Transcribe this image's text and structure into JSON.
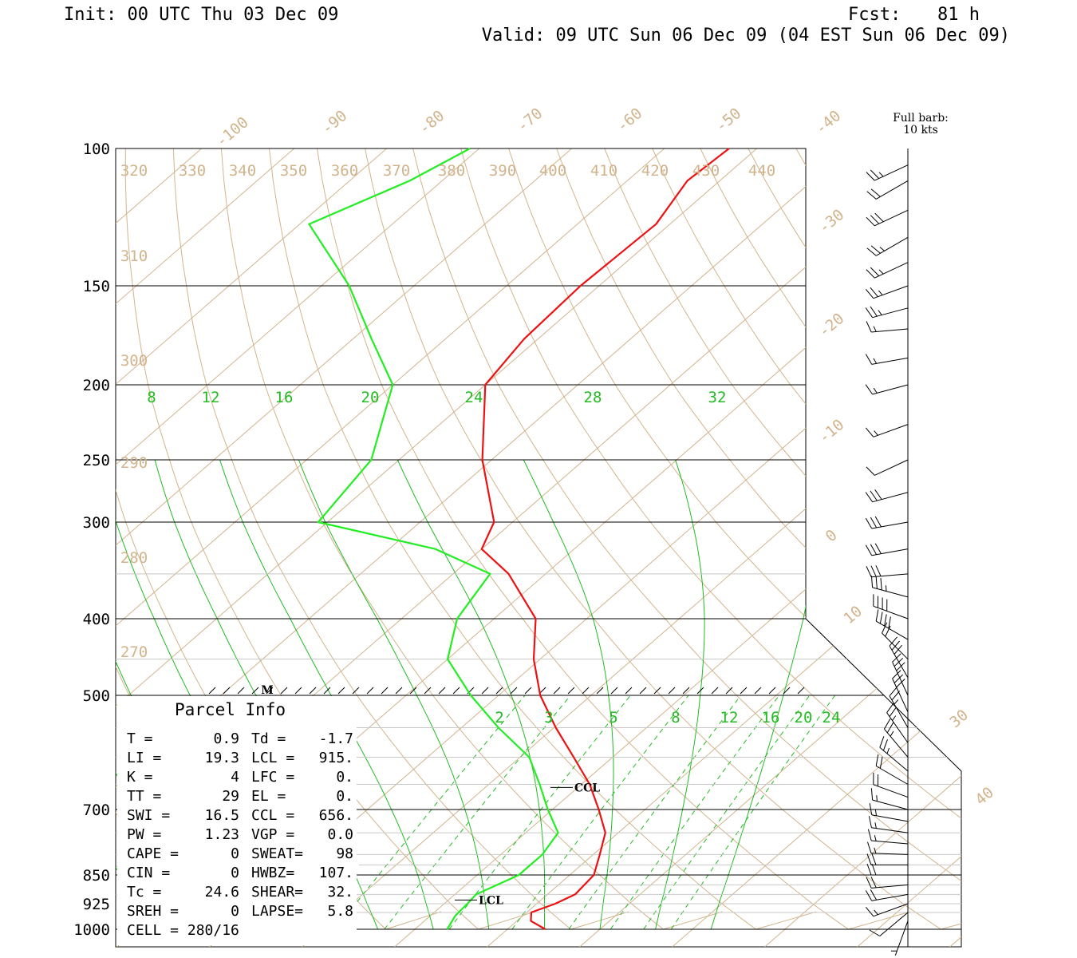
{
  "header": {
    "init": "Init: 00 UTC Thu 03 Dec 09",
    "fcst_label": "Fcst:",
    "fcst_value": "81 h",
    "valid": "Valid: 09 UTC Sun 06 Dec 09 (04 EST Sun 06 Dec 09)"
  },
  "barb_legend": {
    "line1": "Full barb:",
    "line2": "10 kts"
  },
  "colors": {
    "temperature": "#ee1111",
    "dewpoint": "#22ee22",
    "isotherm": "#d2b48c",
    "mixing_ratio": "#22bb22",
    "pressure_line": "#000000",
    "barb": "#000000"
  },
  "chart_data": {
    "type": "line",
    "title": "",
    "diagram": "skew-T log-P",
    "y_axis": {
      "label": "",
      "scale": "log",
      "ylim": [
        1000,
        100
      ],
      "ticks": [
        100,
        150,
        200,
        250,
        300,
        400,
        500,
        700,
        850,
        925,
        1000
      ]
    },
    "isotherm_labels": [
      "-100",
      "-90",
      "-80",
      "-70",
      "-60",
      "-50",
      "-40",
      "-30",
      "-20",
      "-10",
      "0",
      "10",
      "30",
      "40"
    ],
    "theta_labels_top": [
      "320",
      "330",
      "340",
      "350",
      "360",
      "370",
      "380",
      "390",
      "400",
      "410",
      "420",
      "430",
      "440"
    ],
    "theta_labels_left": [
      "310",
      "300",
      "290",
      "280",
      "270"
    ],
    "mixing_ratio_labels_top": [
      "8",
      "12",
      "16",
      "20",
      "24",
      "28",
      "32"
    ],
    "mixing_ratio_labels_low": [
      "2",
      "3",
      "5",
      "8",
      "12",
      "16",
      "20",
      "24"
    ],
    "markers": [
      {
        "label": "CCL",
        "pressure": 656
      },
      {
        "label": "LCL",
        "pressure": 915
      },
      {
        "label": "M",
        "pressure": 500
      }
    ],
    "series": [
      {
        "name": "",
        "variable": "temperature",
        "points": [
          [
            1000,
            14.1
          ],
          [
            975,
            11.5
          ],
          [
            950,
            10.5
          ],
          [
            925,
            12.0
          ],
          [
            900,
            13.0
          ],
          [
            850,
            12.6
          ],
          [
            800,
            10.7
          ],
          [
            750,
            8.6
          ],
          [
            700,
            5.0
          ],
          [
            650,
            0.9
          ],
          [
            600,
            -4.2
          ],
          [
            550,
            -9.8
          ],
          [
            500,
            -15.5
          ],
          [
            450,
            -20.7
          ],
          [
            400,
            -25.5
          ],
          [
            350,
            -34.0
          ],
          [
            325,
            -40.0
          ],
          [
            300,
            -42.0
          ],
          [
            250,
            -51.0
          ],
          [
            200,
            -60.0
          ],
          [
            175,
            -61.5
          ],
          [
            150,
            -62.0
          ],
          [
            125,
            -61.5
          ],
          [
            110,
            -63.5
          ],
          [
            100,
            -63.0
          ]
        ]
      },
      {
        "name": "",
        "variable": "dewpoint",
        "points": [
          [
            1000,
            3.5
          ],
          [
            960,
            2.7
          ],
          [
            925,
            2.5
          ],
          [
            900,
            2.3
          ],
          [
            850,
            4.5
          ],
          [
            800,
            4.5
          ],
          [
            750,
            3.5
          ],
          [
            700,
            -0.5
          ],
          [
            650,
            -4.5
          ],
          [
            600,
            -9.0
          ],
          [
            550,
            -16.0
          ],
          [
            500,
            -23.0
          ],
          [
            450,
            -30.0
          ],
          [
            400,
            -34.0
          ],
          [
            350,
            -36.0
          ],
          [
            325,
            -45.0
          ],
          [
            300,
            -61.0
          ],
          [
            250,
            -63.0
          ],
          [
            200,
            -70.0
          ],
          [
            175,
            -78.0
          ],
          [
            150,
            -87.0
          ],
          [
            125,
            -99.0
          ],
          [
            110,
            -93.5
          ],
          [
            100,
            -91.0
          ]
        ]
      }
    ],
    "winds": [
      [
        1000,
        0,
        3
      ],
      [
        975,
        200,
        5
      ],
      [
        950,
        230,
        10
      ],
      [
        925,
        250,
        15
      ],
      [
        900,
        260,
        20
      ],
      [
        875,
        265,
        20
      ],
      [
        850,
        270,
        20
      ],
      [
        825,
        270,
        20
      ],
      [
        800,
        272,
        15
      ],
      [
        775,
        275,
        15
      ],
      [
        750,
        278,
        15
      ],
      [
        725,
        280,
        15
      ],
      [
        700,
        285,
        15
      ],
      [
        675,
        290,
        20
      ],
      [
        650,
        300,
        20
      ],
      [
        625,
        310,
        25
      ],
      [
        600,
        320,
        25
      ],
      [
        575,
        325,
        25
      ],
      [
        550,
        330,
        25
      ],
      [
        525,
        335,
        30
      ],
      [
        500,
        335,
        30
      ],
      [
        475,
        330,
        30
      ],
      [
        450,
        315,
        20
      ],
      [
        425,
        300,
        40
      ],
      [
        400,
        290,
        40
      ],
      [
        375,
        285,
        35
      ],
      [
        350,
        265,
        30
      ],
      [
        325,
        260,
        30
      ],
      [
        300,
        260,
        30
      ],
      [
        275,
        255,
        30
      ],
      [
        250,
        245,
        10
      ],
      [
        225,
        250,
        15
      ],
      [
        200,
        255,
        15
      ],
      [
        185,
        260,
        15
      ],
      [
        170,
        265,
        15
      ],
      [
        160,
        255,
        25
      ],
      [
        150,
        250,
        25
      ],
      [
        140,
        245,
        25
      ],
      [
        130,
        240,
        25
      ],
      [
        120,
        245,
        30
      ],
      [
        110,
        240,
        20
      ],
      [
        105,
        245,
        25
      ]
    ]
  },
  "parcel_info": {
    "title": "Parcel Info",
    "rows": [
      [
        "T  =",
        "0.9",
        "Td =",
        "-1.7"
      ],
      [
        "LI =",
        "19.3",
        "LCL =",
        "915."
      ],
      [
        "K  =",
        "4",
        "LFC =",
        "0."
      ],
      [
        "TT =",
        "29",
        "EL  =",
        "0."
      ],
      [
        "SWI =",
        "16.5",
        "CCL =",
        "656."
      ],
      [
        "PW =",
        "1.23",
        "VGP =",
        "0.0"
      ],
      [
        "CAPE =",
        "0",
        "SWEAT=",
        "98"
      ],
      [
        "CIN =",
        "0",
        "HWBZ=",
        "107."
      ],
      [
        "Tc =",
        "24.6",
        "SHEAR=",
        "32."
      ],
      [
        "SREH =",
        "0",
        "LAPSE=",
        "5.8"
      ]
    ],
    "cell": "CELL = 280/16"
  }
}
